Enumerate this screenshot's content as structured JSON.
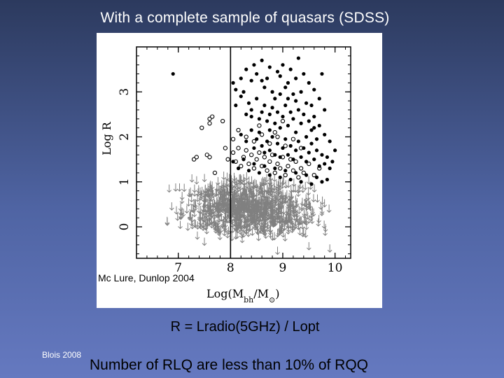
{
  "slide": {
    "title": "With a complete sample of quasars (SDSS)",
    "credit": "Mc Lure, Dunlop 2004",
    "equation": "R = Lradio(5GHz) / Lopt",
    "footer_left": "Blois 2008",
    "footer_main": "Number of RLQ are less than 10% of RQQ"
  },
  "chart_data": {
    "type": "scatter",
    "title": "",
    "xlabel_main": "Log(M",
    "xlabel_sub": "bh",
    "xlabel_mid": "/M",
    "xlabel_sub2": "⊙",
    "xlabel_end": ")",
    "ylabel": "Log R",
    "xlim": [
      6.2,
      10.3
    ],
    "ylim": [
      -0.7,
      4.0
    ],
    "x_ticks": [
      7,
      8,
      9,
      10
    ],
    "x_tick_labels": [
      "7",
      "8",
      "9",
      "10"
    ],
    "y_ticks": [
      0,
      1,
      2,
      3
    ],
    "y_tick_labels": [
      "0",
      "1",
      "2",
      "3"
    ],
    "vertical_line_x": 8.0,
    "grid": false,
    "series": [
      {
        "marker": "filled-circle",
        "color": "#000000",
        "points": [
          [
            6.9,
            3.4
          ],
          [
            8.05,
            3.2
          ],
          [
            8.1,
            3.05
          ],
          [
            8.2,
            3.3
          ],
          [
            8.3,
            3.5
          ],
          [
            8.4,
            3.25
          ],
          [
            8.45,
            3.6
          ],
          [
            8.5,
            3.4
          ],
          [
            8.6,
            3.7
          ],
          [
            8.65,
            3.1
          ],
          [
            8.7,
            3.3
          ],
          [
            8.75,
            3.55
          ],
          [
            8.8,
            3.0
          ],
          [
            8.85,
            2.85
          ],
          [
            8.9,
            3.45
          ],
          [
            8.95,
            3.35
          ],
          [
            9.0,
            3.6
          ],
          [
            9.05,
            3.1
          ],
          [
            9.1,
            3.2
          ],
          [
            9.15,
            3.5
          ],
          [
            9.2,
            2.95
          ],
          [
            9.25,
            3.3
          ],
          [
            9.3,
            3.75
          ],
          [
            9.35,
            3.0
          ],
          [
            9.4,
            3.4
          ],
          [
            9.5,
            3.2
          ],
          [
            9.55,
            2.7
          ],
          [
            9.6,
            3.05
          ],
          [
            9.7,
            2.85
          ],
          [
            9.75,
            3.4
          ],
          [
            9.8,
            2.6
          ],
          [
            8.1,
            2.7
          ],
          [
            8.2,
            2.9
          ],
          [
            8.3,
            2.5
          ],
          [
            8.35,
            2.75
          ],
          [
            8.4,
            2.6
          ],
          [
            8.5,
            2.85
          ],
          [
            8.55,
            2.4
          ],
          [
            8.6,
            2.55
          ],
          [
            8.65,
            2.7
          ],
          [
            8.7,
            2.35
          ],
          [
            8.75,
            2.5
          ],
          [
            8.8,
            2.65
          ],
          [
            8.85,
            2.3
          ],
          [
            8.9,
            2.55
          ],
          [
            8.95,
            2.2
          ],
          [
            9.0,
            2.45
          ],
          [
            9.05,
            2.7
          ],
          [
            9.1,
            2.25
          ],
          [
            9.15,
            2.55
          ],
          [
            9.2,
            2.4
          ],
          [
            9.25,
            2.1
          ],
          [
            9.3,
            2.6
          ],
          [
            9.35,
            2.3
          ],
          [
            9.4,
            2.5
          ],
          [
            9.45,
            2.0
          ],
          [
            9.5,
            2.35
          ],
          [
            9.55,
            2.15
          ],
          [
            9.6,
            2.45
          ],
          [
            9.65,
            1.95
          ],
          [
            9.7,
            2.25
          ],
          [
            9.8,
            2.05
          ],
          [
            9.9,
            1.9
          ],
          [
            10.0,
            1.7
          ],
          [
            8.2,
            2.05
          ],
          [
            8.3,
            1.9
          ],
          [
            8.4,
            2.15
          ],
          [
            8.45,
            1.75
          ],
          [
            8.5,
            1.95
          ],
          [
            8.55,
            2.1
          ],
          [
            8.6,
            1.8
          ],
          [
            8.65,
            1.65
          ],
          [
            8.7,
            1.9
          ],
          [
            8.75,
            1.7
          ],
          [
            8.8,
            2.0
          ],
          [
            8.85,
            1.6
          ],
          [
            8.9,
            1.85
          ],
          [
            8.95,
            1.55
          ],
          [
            9.0,
            1.75
          ],
          [
            9.05,
            1.95
          ],
          [
            9.1,
            1.6
          ],
          [
            9.15,
            1.8
          ],
          [
            9.2,
            1.5
          ],
          [
            9.25,
            1.7
          ],
          [
            9.3,
            1.9
          ],
          [
            9.35,
            1.55
          ],
          [
            9.4,
            1.75
          ],
          [
            9.45,
            1.45
          ],
          [
            9.5,
            1.65
          ],
          [
            9.55,
            1.85
          ],
          [
            9.6,
            1.5
          ],
          [
            9.65,
            1.7
          ],
          [
            9.7,
            1.35
          ],
          [
            9.75,
            1.6
          ],
          [
            9.8,
            1.4
          ],
          [
            9.85,
            1.55
          ],
          [
            9.9,
            1.3
          ],
          [
            9.95,
            1.45
          ],
          [
            8.05,
            1.45
          ],
          [
            8.15,
            1.3
          ],
          [
            8.25,
            1.5
          ],
          [
            8.35,
            1.25
          ],
          [
            8.45,
            1.4
          ],
          [
            8.55,
            1.2
          ],
          [
            8.65,
            1.35
          ],
          [
            8.75,
            1.15
          ],
          [
            8.85,
            1.3
          ],
          [
            8.95,
            1.1
          ],
          [
            9.05,
            1.25
          ],
          [
            9.15,
            1.05
          ],
          [
            9.25,
            1.2
          ],
          [
            9.35,
            1.0
          ],
          [
            9.45,
            1.15
          ],
          [
            9.55,
            0.95
          ],
          [
            9.65,
            1.1
          ],
          [
            9.75,
            1.0
          ],
          [
            9.85,
            1.05
          ],
          [
            8.4,
            2.45
          ],
          [
            9.1,
            2.85
          ],
          [
            8.25,
            3.0
          ],
          [
            8.75,
            2.15
          ],
          [
            9.25,
            2.8
          ],
          [
            8.6,
            3.25
          ],
          [
            9.45,
            2.75
          ],
          [
            8.95,
            2.95
          ],
          [
            9.6,
            2.2
          ]
        ]
      },
      {
        "marker": "open-circle",
        "color": "#000000",
        "points": [
          [
            7.6,
            2.4
          ],
          [
            7.65,
            2.45
          ],
          [
            7.85,
            2.35
          ],
          [
            7.45,
            2.2
          ],
          [
            7.6,
            2.3
          ],
          [
            7.55,
            1.6
          ],
          [
            7.6,
            1.55
          ],
          [
            7.3,
            1.5
          ],
          [
            7.35,
            1.55
          ],
          [
            7.9,
            1.75
          ],
          [
            7.95,
            1.5
          ],
          [
            8.05,
            1.65
          ],
          [
            8.1,
            1.45
          ],
          [
            8.15,
            1.75
          ],
          [
            8.2,
            1.35
          ],
          [
            8.25,
            1.55
          ],
          [
            8.3,
            1.7
          ],
          [
            8.35,
            1.4
          ],
          [
            8.4,
            1.6
          ],
          [
            8.45,
            1.3
          ],
          [
            8.5,
            1.5
          ],
          [
            8.55,
            1.65
          ],
          [
            8.6,
            1.35
          ],
          [
            8.65,
            1.55
          ],
          [
            8.7,
            1.25
          ],
          [
            8.75,
            1.45
          ],
          [
            8.8,
            1.6
          ],
          [
            8.85,
            1.2
          ],
          [
            8.9,
            1.4
          ],
          [
            8.95,
            1.3
          ],
          [
            9.0,
            1.55
          ],
          [
            9.05,
            1.15
          ],
          [
            9.1,
            1.35
          ],
          [
            9.15,
            1.5
          ],
          [
            9.2,
            1.25
          ],
          [
            9.25,
            1.45
          ],
          [
            9.3,
            1.1
          ],
          [
            9.35,
            1.3
          ],
          [
            9.4,
            1.2
          ],
          [
            9.5,
            1.4
          ],
          [
            9.6,
            1.15
          ],
          [
            9.7,
            1.3
          ],
          [
            8.3,
            2.0
          ],
          [
            8.45,
            1.9
          ],
          [
            8.6,
            2.05
          ],
          [
            8.75,
            1.85
          ],
          [
            8.9,
            2.0
          ],
          [
            9.05,
            1.8
          ],
          [
            9.2,
            1.95
          ],
          [
            8.15,
            2.15
          ],
          [
            8.55,
            2.25
          ],
          [
            8.85,
            2.1
          ],
          [
            9.0,
            2.35
          ],
          [
            9.35,
            1.75
          ],
          [
            8.05,
            1.95
          ],
          [
            7.7,
            1.2
          ]
        ]
      },
      {
        "marker": "down-arrow",
        "color": "#808080",
        "description_count": 1100,
        "x_range": [
          6.55,
          10.1
        ],
        "y_range_upper_limits": [
          -0.3,
          1.15
        ]
      }
    ]
  }
}
